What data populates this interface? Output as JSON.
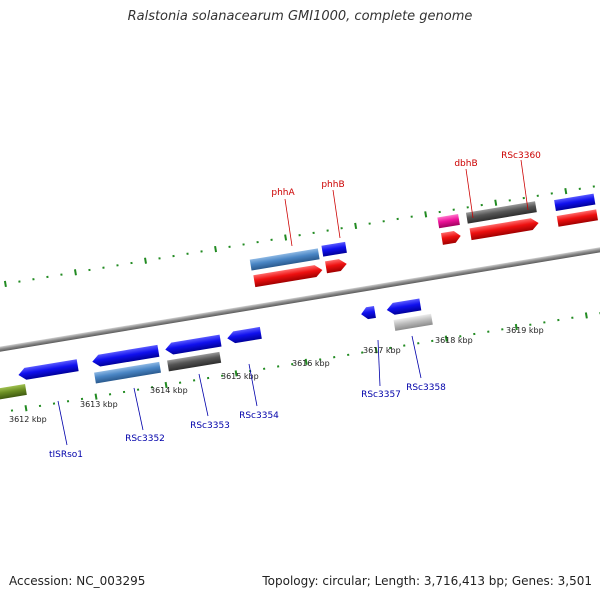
{
  "title": "Ralstonia solanacearum GMI1000, complete genome",
  "footer": {
    "accession": "Accession: NC_003295",
    "stats": "Topology: circular; Length: 3,716,413 bp; Genes: 3,501"
  },
  "colors": {
    "axis": "#909090",
    "tick": "#228B22",
    "label_top": "#cc0000",
    "label_bottom": "#0000aa",
    "cds": "#1010ee",
    "cds_steel": "#4a86c5",
    "rna_red": "#ee1010",
    "gray_dark": "#555555",
    "gray_light": "#bdbdbd",
    "magenta": "#ee1199",
    "olive": "#6b8e23"
  },
  "kbp_labels": [
    "3612 kbp",
    "3613 kbp",
    "3614 kbp",
    "3615 kbp",
    "3616 kbp",
    "3617 kbp",
    "3618 kbp",
    "3619 kbp"
  ],
  "top_labels": [
    "phhA",
    "phhB",
    "dbhB",
    "RSc3360"
  ],
  "bottom_labels": [
    "tISRso1",
    "RSc3352",
    "RSc3353",
    "RSc3354",
    "RSc3357",
    "RSc3358"
  ]
}
